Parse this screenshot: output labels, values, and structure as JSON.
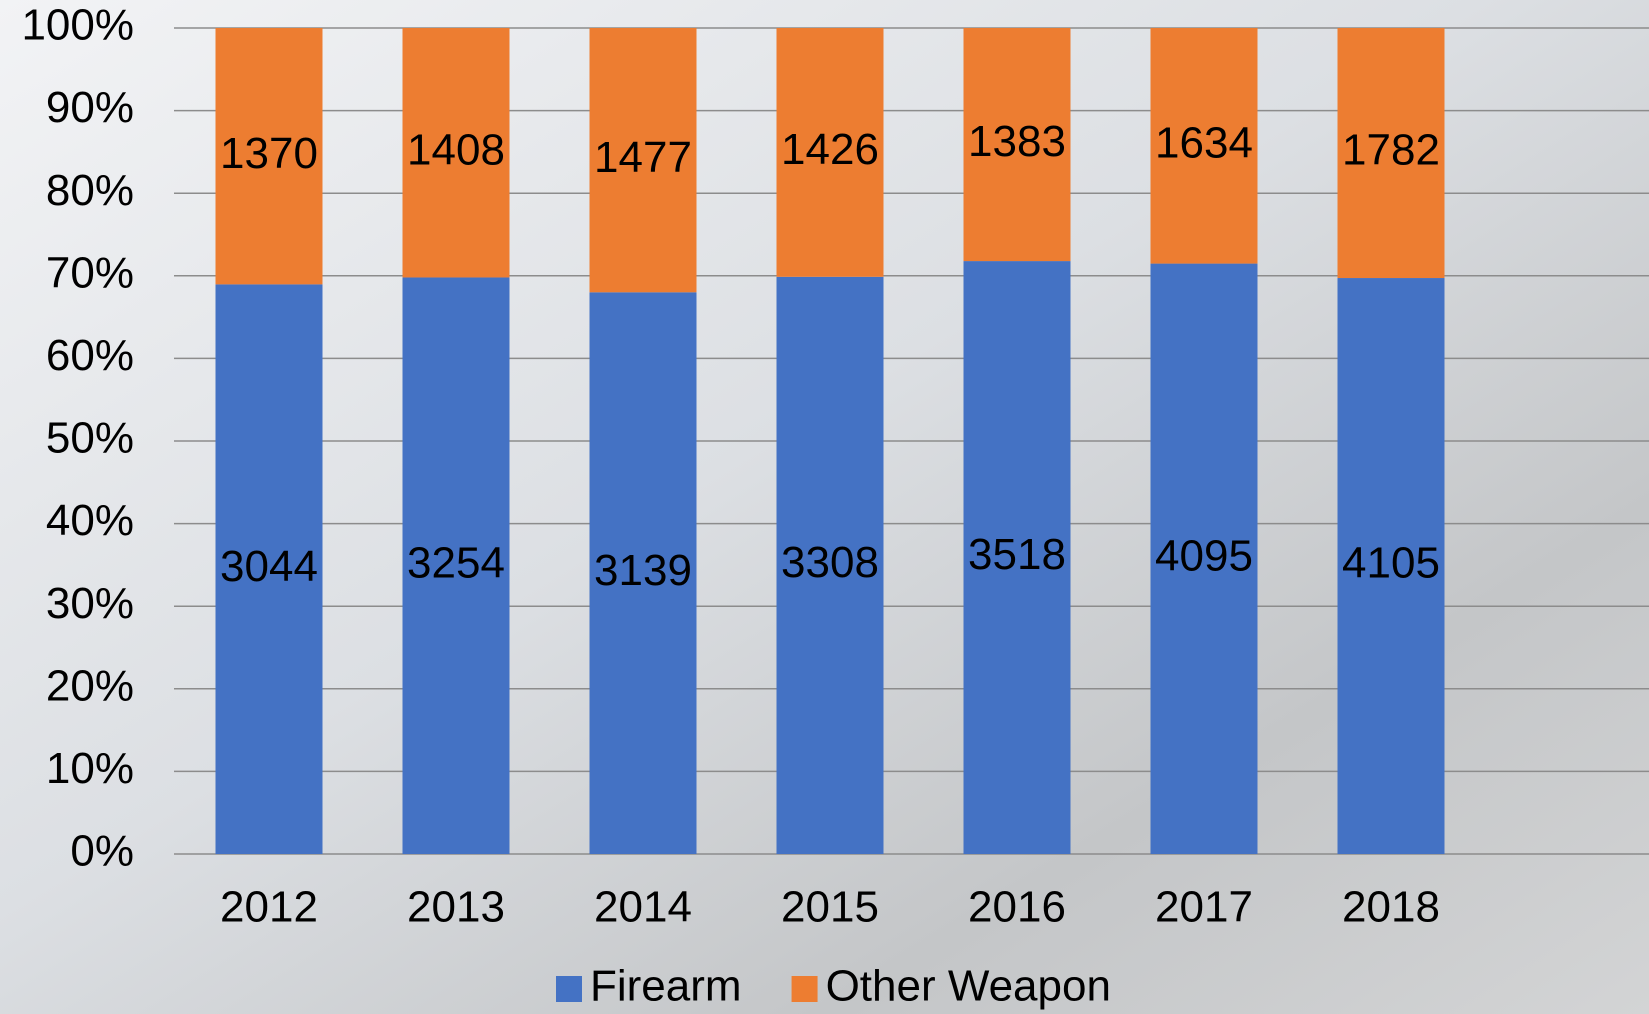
{
  "chart_data": {
    "type": "bar",
    "stacking": "percent",
    "categories": [
      "2012",
      "2013",
      "2014",
      "2015",
      "2016",
      "2017",
      "2018"
    ],
    "series": [
      {
        "name": "Firearm",
        "color": "#4472c4",
        "values": [
          3044,
          3254,
          3139,
          3308,
          3518,
          4095,
          4105
        ]
      },
      {
        "name": "Other Weapon",
        "color": "#ed7d31",
        "values": [
          1370,
          1408,
          1477,
          1426,
          1383,
          1634,
          1782
        ]
      }
    ],
    "ylim": [
      0,
      100
    ],
    "yticks": [
      {
        "value": 0,
        "label": "0%"
      },
      {
        "value": 10,
        "label": "10%"
      },
      {
        "value": 20,
        "label": "20%"
      },
      {
        "value": 30,
        "label": "30%"
      },
      {
        "value": 40,
        "label": "40%"
      },
      {
        "value": 50,
        "label": "50%"
      },
      {
        "value": 60,
        "label": "60%"
      },
      {
        "value": 70,
        "label": "70%"
      },
      {
        "value": 80,
        "label": "80%"
      },
      {
        "value": 90,
        "label": "90%"
      },
      {
        "value": 100,
        "label": "100%"
      }
    ],
    "grid": true,
    "legend": "bottom"
  }
}
